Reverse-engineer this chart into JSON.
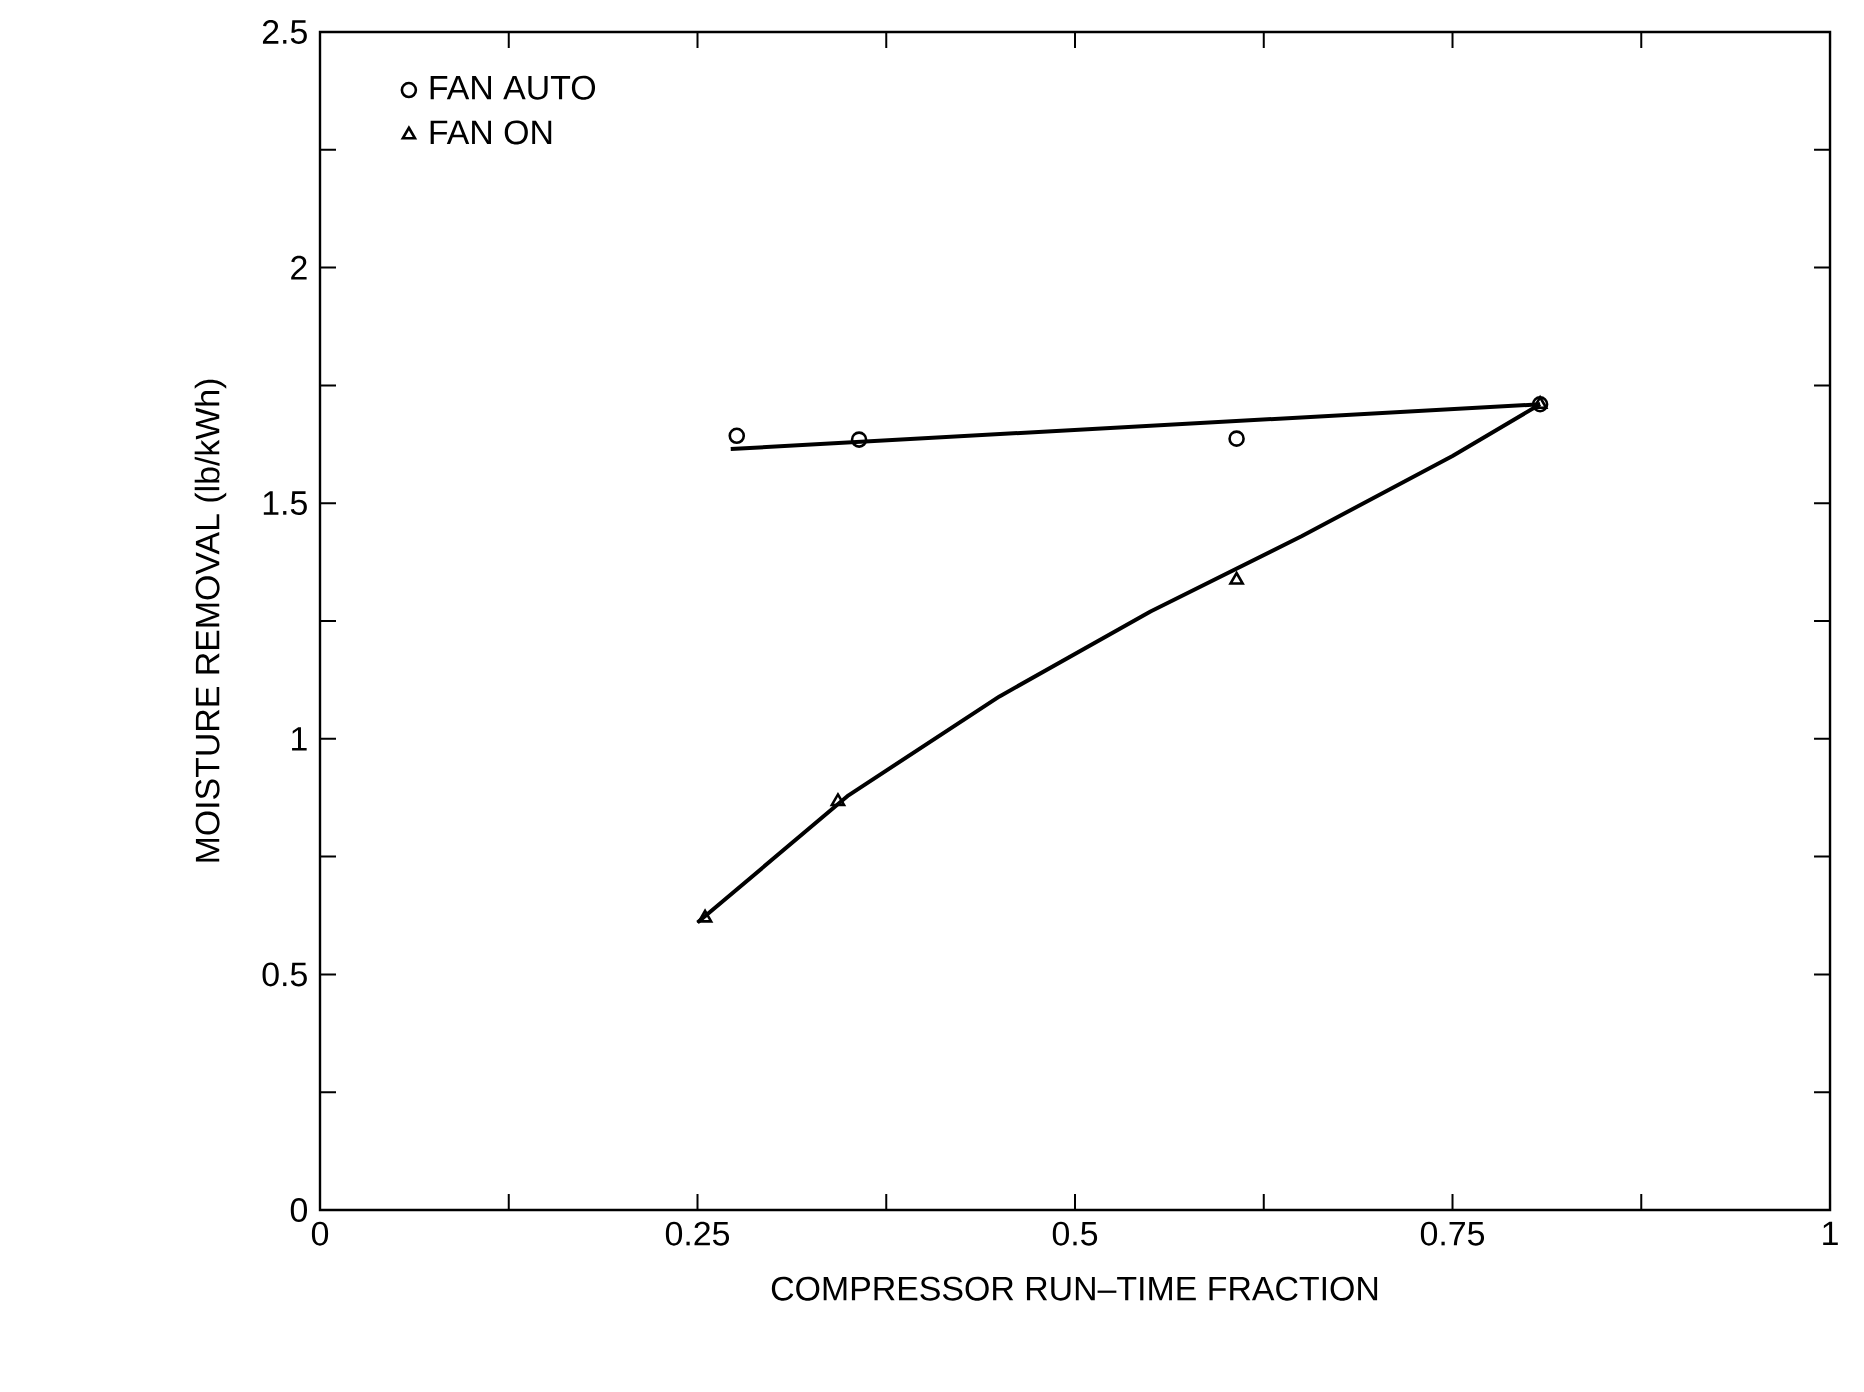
{
  "chart_data": {
    "type": "scatter",
    "xlabel": "COMPRESSOR RUN–TIME FRACTION",
    "ylabel": "MOISTURE REMOVAL (lb/kWh)",
    "xlim": [
      0,
      1
    ],
    "ylim": [
      0,
      2.5
    ],
    "xticks": [
      0,
      {
        "value": 0.125,
        "label": null
      },
      0.25,
      {
        "value": 0.375,
        "label": null
      },
      0.5,
      {
        "value": 0.625,
        "label": null
      },
      0.75,
      {
        "value": 0.875,
        "label": null
      },
      1
    ],
    "yticks": [
      0,
      {
        "value": 0.25,
        "label": null
      },
      0.5,
      {
        "value": 0.75,
        "label": null
      },
      1,
      {
        "value": 1.25,
        "label": null
      },
      1.5,
      {
        "value": 1.75,
        "label": null
      },
      2,
      {
        "value": 2.25,
        "label": null
      },
      2.5
    ],
    "legend": "top left",
    "grid": false,
    "series": [
      {
        "name": "FAN AUTO",
        "marker": "circle",
        "color": "#000000",
        "x": [
          0.276,
          0.357,
          0.607,
          0.808
        ],
        "values": [
          1.643,
          1.635,
          1.637,
          1.71
        ]
      },
      {
        "name": "FAN ON",
        "marker": "triangle",
        "color": "#000000",
        "x": [
          0.255,
          0.343,
          0.607,
          0.808
        ],
        "values": [
          0.62,
          0.867,
          1.337,
          1.71
        ]
      },
      {
        "type": "line",
        "marker": "none",
        "color": "#000000",
        "x": [
          0.272,
          0.808
        ],
        "values": [
          1.615,
          1.71
        ]
      },
      {
        "type": "line",
        "marker": "none",
        "color": "#000000",
        "x": [
          0.25,
          0.35,
          0.45,
          0.55,
          0.65,
          0.75,
          0.808
        ],
        "values": [
          0.61,
          0.88,
          1.09,
          1.27,
          1.43,
          1.6,
          1.71
        ]
      }
    ]
  }
}
